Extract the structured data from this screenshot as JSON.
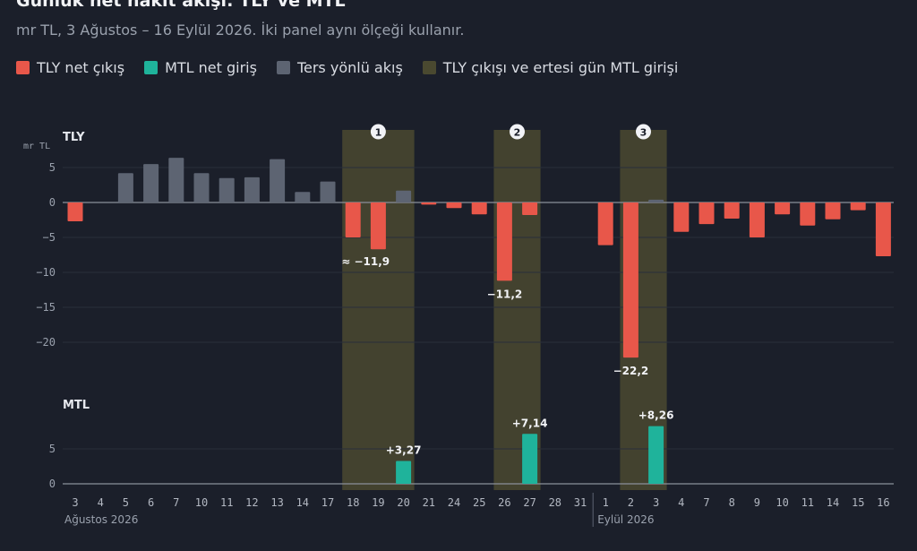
{
  "title": "Günlük net nakit akışı: TLY ve MTL",
  "subtitle": "mr TL, 3 Ağustos – 16 Eylül 2026. İki panel aynı ölçeği kullanır.",
  "legend": [
    {
      "label": "TLY net çıkış",
      "color": "#e8574a"
    },
    {
      "label": "MTL net giriş",
      "color": "#1fb39b"
    },
    {
      "label": "Ters yönlü akış",
      "color": "#5d6472"
    },
    {
      "label": "TLY çıkışı ve ertesi gün MTL girişi",
      "color": "#4a4930"
    }
  ],
  "chart_data": {
    "type": "bar",
    "unit": "mr TL",
    "categories": [
      "3",
      "4",
      "5",
      "6",
      "7",
      "10",
      "11",
      "12",
      "13",
      "14",
      "17",
      "18",
      "19",
      "20",
      "21",
      "24",
      "25",
      "26",
      "27",
      "28",
      "31",
      "1",
      "2",
      "3",
      "4",
      "7",
      "8",
      "9",
      "10",
      "11",
      "14",
      "15",
      "16"
    ],
    "month_labels": [
      {
        "label": "Ağustos 2026",
        "start_index": 0
      },
      {
        "label": "Eylül 2026",
        "start_index": 21
      }
    ],
    "panels": [
      {
        "name": "TLY",
        "axis_label": "mr TL",
        "yticks": [
          5,
          0,
          -5,
          -10,
          -15,
          -20
        ],
        "ylim": [
          -22.5,
          7.5
        ],
        "values": [
          -2.7,
          0,
          4.2,
          5.5,
          6.4,
          4.2,
          3.5,
          3.6,
          6.2,
          1.5,
          3.0,
          -5.0,
          -6.7,
          1.7,
          -0.3,
          -0.8,
          -1.7,
          -11.2,
          -1.8,
          0,
          0,
          -6.1,
          -22.2,
          0.4,
          -4.2,
          -3.1,
          -2.3,
          -5.0,
          -1.7,
          -3.3,
          -2.4,
          -1.1,
          -7.7
        ],
        "annotations": [
          {
            "index": 11,
            "text": "≈ −11,9"
          },
          {
            "index": 17,
            "text": "−11,2"
          },
          {
            "index": 22,
            "text": "−22,2"
          }
        ]
      },
      {
        "name": "MTL",
        "yticks": [
          5,
          0
        ],
        "values": [
          0,
          0,
          0,
          0,
          0,
          0,
          0,
          0,
          0,
          0,
          0,
          0,
          0,
          3.27,
          0,
          0,
          0,
          0,
          7.14,
          0,
          0,
          0,
          0,
          8.26,
          0,
          0,
          0,
          0,
          0,
          0,
          0,
          0,
          0
        ],
        "annotations": [
          {
            "index": 13,
            "text": "+3,27"
          },
          {
            "index": 18,
            "text": "+7,14"
          },
          {
            "index": 23,
            "text": "+8,26"
          }
        ]
      }
    ],
    "highlights": [
      {
        "label": "1",
        "from_index": 11,
        "to_index": 13
      },
      {
        "label": "2",
        "from_index": 17,
        "to_index": 18
      },
      {
        "label": "3",
        "from_index": 22,
        "to_index": 23
      }
    ]
  }
}
